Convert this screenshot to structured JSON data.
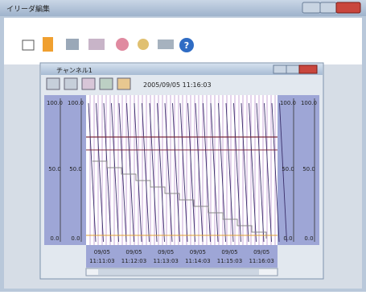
{
  "window": {
    "title": "イリーダ編集"
  },
  "trend_window": {
    "title": "チャンネル1",
    "timestamp": "2005/09/05 11:16:03"
  },
  "left_scales": [
    [
      "100.0",
      "50.0",
      "0.0"
    ],
    [
      "100.0",
      "50.0",
      "0.0"
    ]
  ],
  "right_scales": [
    [
      "100.0",
      "50.0",
      "0.0"
    ],
    [
      "100.0",
      "50.0",
      "0.0"
    ]
  ],
  "time_labels": [
    {
      "date": "09/05",
      "time": "11:11:03"
    },
    {
      "date": "09/05",
      "time": "11:12:03"
    },
    {
      "date": "09/05",
      "time": "11:13:03"
    },
    {
      "date": "09/05",
      "time": "11:14:03"
    },
    {
      "date": "09/05",
      "time": "11:15:03"
    },
    {
      "date": "09/05",
      "time": "11:16:03"
    }
  ]
}
